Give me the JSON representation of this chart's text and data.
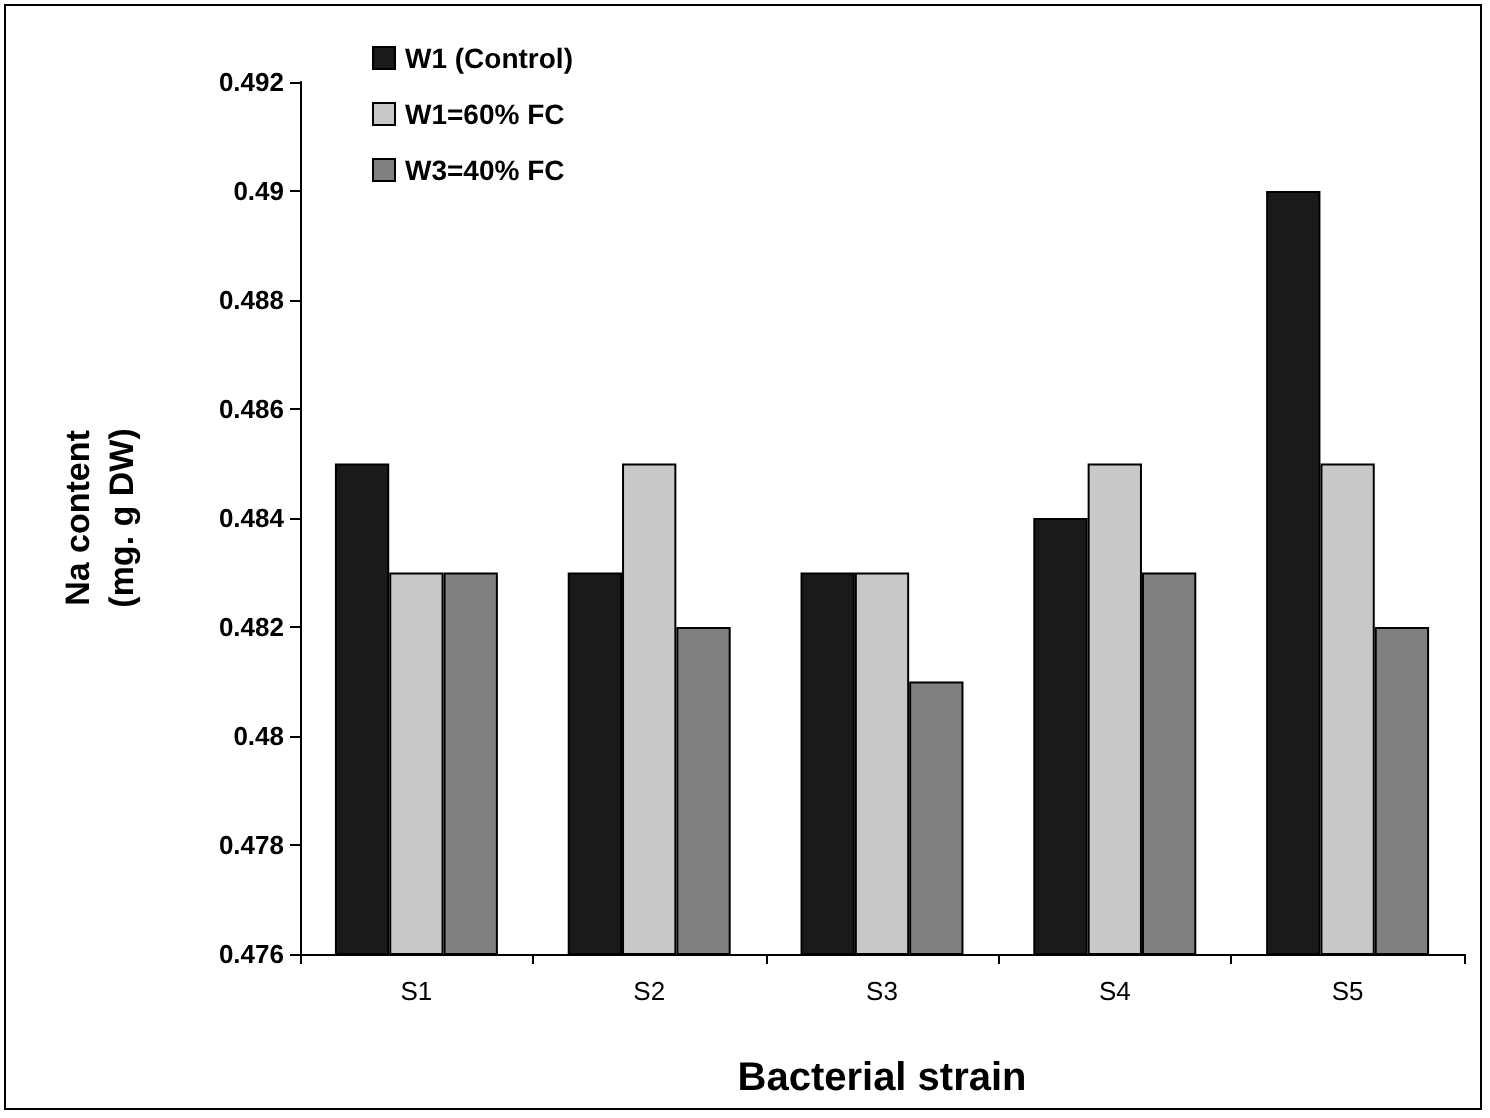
{
  "chart_data": {
    "type": "bar",
    "xlabel": "Bacterial strain",
    "ylabel": "Na content\n(mg. g DW)",
    "categories": [
      "S1",
      "S2",
      "S3",
      "S4",
      "S5"
    ],
    "series": [
      {
        "name": "W1 (Control)",
        "color": "#1a1a1a",
        "values": [
          0.485,
          0.483,
          0.483,
          0.484,
          0.49
        ]
      },
      {
        "name": "W1=60% FC",
        "color": "#c8c8c8",
        "values": [
          0.483,
          0.485,
          0.483,
          0.485,
          0.485
        ]
      },
      {
        "name": "W3=40% FC",
        "color": "#808080",
        "values": [
          0.483,
          0.482,
          0.481,
          0.483,
          0.482
        ]
      }
    ],
    "ylim": [
      0.476,
      0.492
    ],
    "yticks": [
      0.476,
      0.478,
      0.48,
      0.482,
      0.484,
      0.486,
      0.488,
      0.49,
      0.492
    ],
    "grid": false,
    "legend": "top left"
  }
}
